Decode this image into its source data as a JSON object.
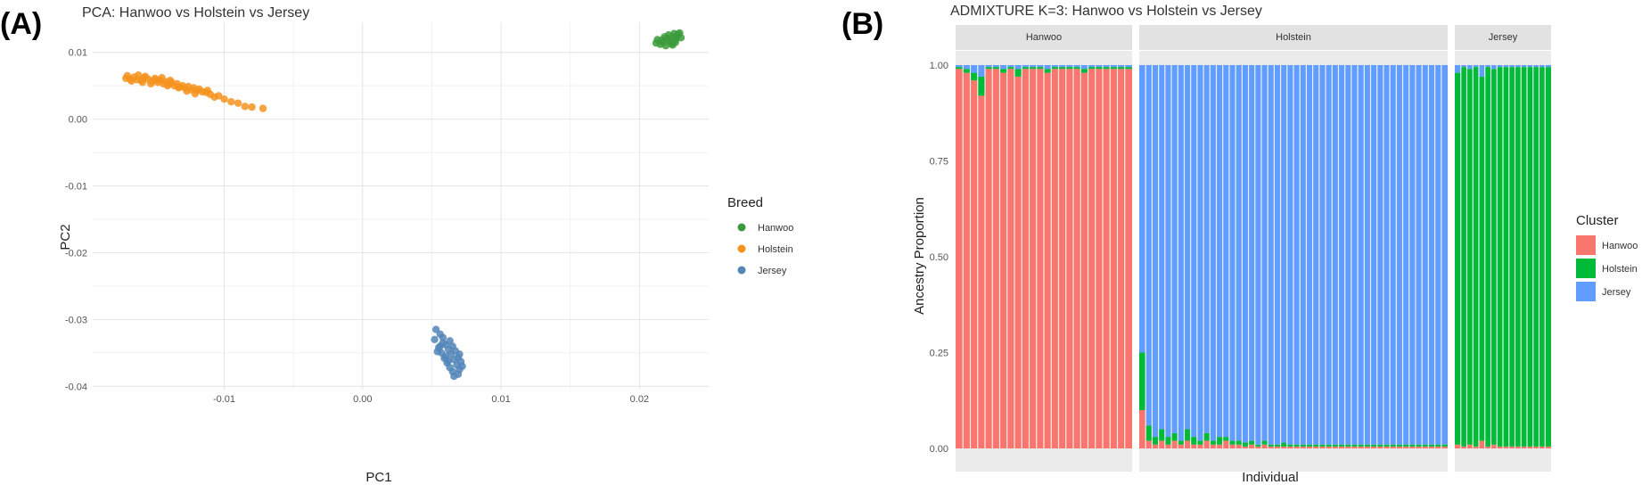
{
  "figure": {
    "panel_a_label": "(A)",
    "panel_b_label": "(B)"
  },
  "chart_data": [
    {
      "type": "scatter",
      "title": "PCA: Hanwoo vs Holstein vs Jersey",
      "xlabel": "PC1",
      "ylabel": "PC2",
      "xlim": [
        -0.0195,
        0.025
      ],
      "ylim": [
        -0.0405,
        0.0145
      ],
      "x_ticks": [
        -0.01,
        0.0,
        0.01,
        0.02
      ],
      "x_tick_labels": [
        "-0.01",
        "0.00",
        "0.01",
        "0.02"
      ],
      "y_ticks": [
        0.01,
        0.0,
        -0.01,
        -0.02,
        -0.03,
        -0.04
      ],
      "y_tick_labels": [
        "0.01",
        "0.00",
        "-0.01",
        "-0.02",
        "-0.03",
        "-0.04"
      ],
      "grid": true,
      "legend_title": "Breed",
      "legend_position": "right",
      "series": [
        {
          "name": "Hanwoo",
          "color": "#3b9b3b",
          "points": [
            [
              0.0213,
              0.0119
            ],
            [
              0.0217,
              0.0115
            ],
            [
              0.022,
              0.0121
            ],
            [
              0.0222,
              0.0117
            ],
            [
              0.0224,
              0.0123
            ],
            [
              0.0226,
              0.0119
            ],
            [
              0.0228,
              0.0127
            ],
            [
              0.0215,
              0.0112
            ],
            [
              0.0219,
              0.011
            ],
            [
              0.0223,
              0.0113
            ],
            [
              0.0227,
              0.0124
            ],
            [
              0.023,
              0.0122
            ],
            [
              0.0221,
              0.0126
            ],
            [
              0.0225,
              0.0128
            ],
            [
              0.0218,
              0.0123
            ],
            [
              0.0229,
              0.0129
            ],
            [
              0.0216,
              0.0118
            ],
            [
              0.0224,
              0.0111
            ],
            [
              0.0212,
              0.0114
            ],
            [
              0.0226,
              0.0115
            ]
          ]
        },
        {
          "name": "Holstein",
          "color": "#f5931e",
          "points": [
            [
              -0.017,
              0.0065
            ],
            [
              -0.0168,
              0.006
            ],
            [
              -0.0165,
              0.0063
            ],
            [
              -0.0162,
              0.0066
            ],
            [
              -0.016,
              0.0058
            ],
            [
              -0.0158,
              0.0062
            ],
            [
              -0.0155,
              0.006
            ],
            [
              -0.0152,
              0.0057
            ],
            [
              -0.015,
              0.0061
            ],
            [
              -0.0148,
              0.0055
            ],
            [
              -0.0146,
              0.0058
            ],
            [
              -0.0144,
              0.0053
            ],
            [
              -0.0142,
              0.0056
            ],
            [
              -0.014,
              0.0052
            ],
            [
              -0.0138,
              0.0055
            ],
            [
              -0.0136,
              0.005
            ],
            [
              -0.0134,
              0.0053
            ],
            [
              -0.0132,
              0.0048
            ],
            [
              -0.013,
              0.005
            ],
            [
              -0.0128,
              0.0046
            ],
            [
              -0.0126,
              0.0049
            ],
            [
              -0.0124,
              0.0044
            ],
            [
              -0.0122,
              0.0047
            ],
            [
              -0.012,
              0.0043
            ],
            [
              -0.0118,
              0.0045
            ],
            [
              -0.0116,
              0.0041
            ],
            [
              -0.0113,
              0.004
            ],
            [
              -0.011,
              0.0037
            ],
            [
              -0.0107,
              0.0033
            ],
            [
              -0.0104,
              0.0035
            ],
            [
              -0.01,
              0.003
            ],
            [
              -0.0095,
              0.0026
            ],
            [
              -0.009,
              0.0024
            ],
            [
              -0.0085,
              0.0019
            ],
            [
              -0.008,
              0.0018
            ],
            [
              -0.0072,
              0.0016
            ],
            [
              -0.0163,
              0.0059
            ],
            [
              -0.0157,
              0.0064
            ],
            [
              -0.0149,
              0.0059
            ],
            [
              -0.0141,
              0.005
            ],
            [
              -0.0133,
              0.0047
            ],
            [
              -0.0127,
              0.0042
            ],
            [
              -0.0145,
              0.0062
            ],
            [
              -0.0153,
              0.0053
            ],
            [
              -0.0167,
              0.0057
            ],
            [
              -0.0139,
              0.0058
            ],
            [
              -0.0121,
              0.0038
            ],
            [
              -0.0112,
              0.0043
            ],
            [
              -0.0171,
              0.0061
            ],
            [
              -0.0159,
              0.0055
            ]
          ]
        },
        {
          "name": "Jersey",
          "color": "#5285b8",
          "points": [
            [
              0.0053,
              -0.0315
            ],
            [
              0.0056,
              -0.0322
            ],
            [
              0.0052,
              -0.033
            ],
            [
              0.0058,
              -0.0335
            ],
            [
              0.0055,
              -0.0342
            ],
            [
              0.006,
              -0.0338
            ],
            [
              0.0062,
              -0.0345
            ],
            [
              0.0057,
              -0.035
            ],
            [
              0.0064,
              -0.0352
            ],
            [
              0.0059,
              -0.0358
            ],
            [
              0.0066,
              -0.036
            ],
            [
              0.0061,
              -0.0365
            ],
            [
              0.0068,
              -0.0368
            ],
            [
              0.0063,
              -0.0372
            ],
            [
              0.007,
              -0.0375
            ],
            [
              0.0065,
              -0.0378
            ],
            [
              0.0069,
              -0.0382
            ],
            [
              0.0067,
              -0.0347
            ],
            [
              0.0054,
              -0.0348
            ],
            [
              0.0071,
              -0.0363
            ],
            [
              0.006,
              -0.0355
            ],
            [
              0.0065,
              -0.034
            ],
            [
              0.0072,
              -0.037
            ],
            [
              0.0058,
              -0.0327
            ],
            [
              0.0062,
              -0.0362
            ],
            [
              0.0069,
              -0.0357
            ],
            [
              0.0056,
              -0.034
            ],
            [
              0.0063,
              -0.0332
            ],
            [
              0.0066,
              -0.0385
            ],
            [
              0.007,
              -0.0352
            ]
          ]
        }
      ]
    },
    {
      "type": "bar",
      "title": "ADMIXTURE K=3: Hanwoo vs Holstein vs Jersey",
      "xlabel": "Individual",
      "ylabel": "Ancestry Proportion",
      "ylim": [
        0,
        1
      ],
      "y_ticks": [
        0,
        0.25,
        0.5,
        0.75,
        1.0
      ],
      "y_tick_labels": [
        "0.00",
        "0.25",
        "0.50",
        "0.75",
        "1.00"
      ],
      "stacked": true,
      "legend_title": "Cluster",
      "legend_position": "right",
      "clusters": [
        {
          "name": "Hanwoo",
          "color": "#f8766d"
        },
        {
          "name": "Holstein",
          "color": "#00ba38"
        },
        {
          "name": "Jersey",
          "color": "#619cff"
        }
      ],
      "facets": [
        {
          "name": "Hanwoo",
          "composition": [
            0.99,
            0.005,
            0.005
          ],
          "note_rows": [
            [
              0.99,
              0.005,
              0.005
            ],
            [
              0.98,
              0.01,
              0.01
            ],
            [
              0.96,
              0.02,
              0.02
            ],
            [
              0.92,
              0.05,
              0.03
            ],
            [
              0.99,
              0.005,
              0.005
            ],
            [
              0.99,
              0.005,
              0.005
            ],
            [
              0.98,
              0.01,
              0.01
            ],
            [
              0.99,
              0.005,
              0.005
            ],
            [
              0.97,
              0.02,
              0.01
            ],
            [
              0.99,
              0.005,
              0.005
            ],
            [
              0.99,
              0.005,
              0.005
            ],
            [
              0.99,
              0.005,
              0.005
            ],
            [
              0.98,
              0.01,
              0.01
            ],
            [
              0.99,
              0.005,
              0.005
            ],
            [
              0.99,
              0.005,
              0.005
            ],
            [
              0.99,
              0.005,
              0.005
            ],
            [
              0.99,
              0.005,
              0.005
            ],
            [
              0.98,
              0.01,
              0.01
            ],
            [
              0.99,
              0.005,
              0.005
            ],
            [
              0.99,
              0.005,
              0.005
            ],
            [
              0.99,
              0.005,
              0.005
            ],
            [
              0.99,
              0.005,
              0.005
            ],
            [
              0.99,
              0.005,
              0.005
            ],
            [
              0.99,
              0.005,
              0.005
            ]
          ]
        },
        {
          "name": "Holstein",
          "composition": [
            0.005,
            0.005,
            0.99
          ],
          "note_rows": [
            [
              0.1,
              0.15,
              0.75
            ],
            [
              0.02,
              0.04,
              0.94
            ],
            [
              0.01,
              0.02,
              0.97
            ],
            [
              0.02,
              0.03,
              0.95
            ],
            [
              0.01,
              0.02,
              0.97
            ],
            [
              0.02,
              0.02,
              0.96
            ],
            [
              0.01,
              0.01,
              0.98
            ],
            [
              0.02,
              0.03,
              0.95
            ],
            [
              0.01,
              0.02,
              0.97
            ],
            [
              0.01,
              0.01,
              0.98
            ],
            [
              0.02,
              0.02,
              0.96
            ],
            [
              0.01,
              0.01,
              0.98
            ],
            [
              0.01,
              0.02,
              0.97
            ],
            [
              0.02,
              0.01,
              0.97
            ],
            [
              0.01,
              0.01,
              0.98
            ],
            [
              0.01,
              0.01,
              0.98
            ],
            [
              0.005,
              0.01,
              0.985
            ],
            [
              0.01,
              0.01,
              0.98
            ],
            [
              0.005,
              0.005,
              0.99
            ],
            [
              0.01,
              0.01,
              0.98
            ],
            [
              0.005,
              0.005,
              0.99
            ],
            [
              0.005,
              0.005,
              0.99
            ],
            [
              0.005,
              0.01,
              0.985
            ],
            [
              0.005,
              0.005,
              0.99
            ],
            [
              0.005,
              0.005,
              0.99
            ],
            [
              0.005,
              0.005,
              0.99
            ],
            [
              0.005,
              0.005,
              0.99
            ],
            [
              0.005,
              0.005,
              0.99
            ],
            [
              0.005,
              0.005,
              0.99
            ],
            [
              0.005,
              0.005,
              0.99
            ],
            [
              0.005,
              0.005,
              0.99
            ],
            [
              0.005,
              0.005,
              0.99
            ],
            [
              0.005,
              0.005,
              0.99
            ],
            [
              0.005,
              0.005,
              0.99
            ],
            [
              0.005,
              0.005,
              0.99
            ],
            [
              0.005,
              0.005,
              0.99
            ],
            [
              0.005,
              0.005,
              0.99
            ],
            [
              0.005,
              0.005,
              0.99
            ],
            [
              0.005,
              0.005,
              0.99
            ],
            [
              0.005,
              0.005,
              0.99
            ],
            [
              0.005,
              0.005,
              0.99
            ],
            [
              0.005,
              0.005,
              0.99
            ],
            [
              0.005,
              0.005,
              0.99
            ],
            [
              0.005,
              0.005,
              0.99
            ],
            [
              0.005,
              0.005,
              0.99
            ],
            [
              0.005,
              0.005,
              0.99
            ],
            [
              0.005,
              0.005,
              0.99
            ],
            [
              0.005,
              0.005,
              0.99
            ]
          ]
        },
        {
          "name": "Jersey",
          "composition": [
            0.005,
            0.99,
            0.005
          ],
          "note_rows": [
            [
              0.01,
              0.97,
              0.02
            ],
            [
              0.005,
              0.99,
              0.005
            ],
            [
              0.01,
              0.98,
              0.01
            ],
            [
              0.005,
              0.99,
              0.005
            ],
            [
              0.02,
              0.95,
              0.03
            ],
            [
              0.005,
              0.99,
              0.005
            ],
            [
              0.01,
              0.98,
              0.01
            ],
            [
              0.005,
              0.99,
              0.005
            ],
            [
              0.005,
              0.99,
              0.005
            ],
            [
              0.005,
              0.99,
              0.005
            ],
            [
              0.005,
              0.99,
              0.005
            ],
            [
              0.005,
              0.99,
              0.005
            ],
            [
              0.005,
              0.99,
              0.005
            ],
            [
              0.005,
              0.99,
              0.005
            ],
            [
              0.005,
              0.99,
              0.005
            ],
            [
              0.005,
              0.99,
              0.005
            ]
          ]
        }
      ]
    }
  ]
}
